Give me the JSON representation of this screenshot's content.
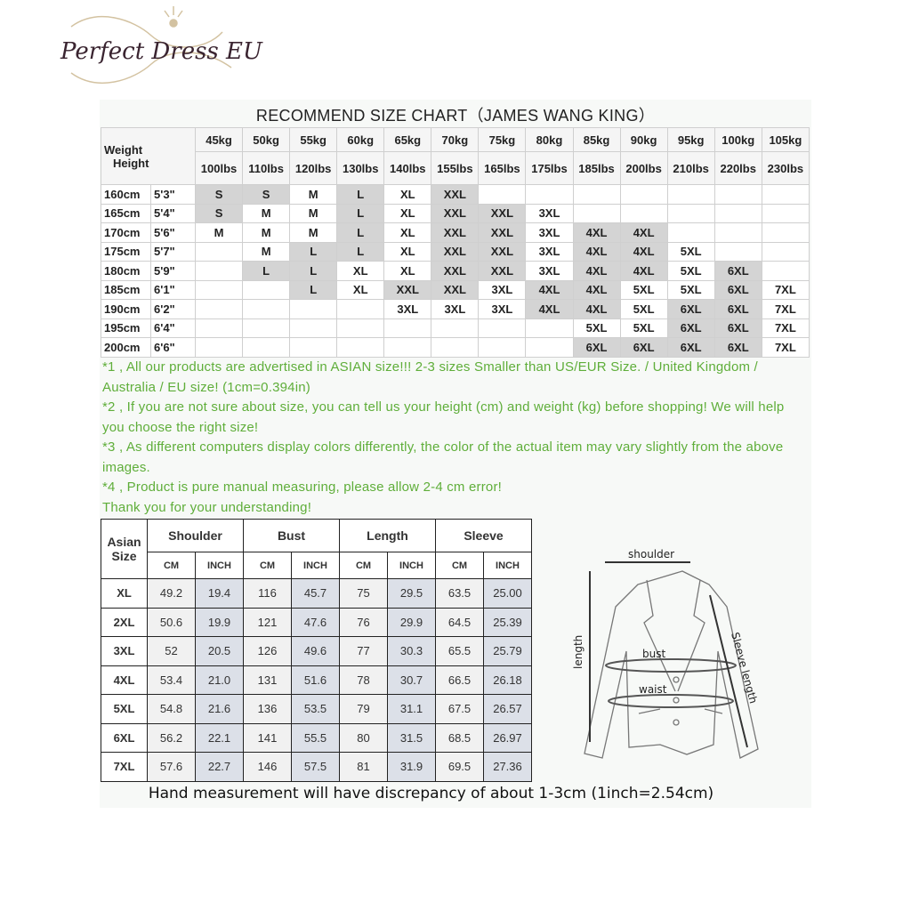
{
  "title": "RECOMMEND SIZE CHART（JAMES WANG KING）",
  "watermark": "Perfect Dress EU",
  "recommend": {
    "corner_weight": "Weight",
    "corner_height": "Height",
    "kg": [
      "45kg",
      "50kg",
      "55kg",
      "60kg",
      "65kg",
      "70kg",
      "75kg",
      "80kg",
      "85kg",
      "90kg",
      "95kg",
      "100kg",
      "105kg"
    ],
    "lbs": [
      "100lbs",
      "110lbs",
      "120lbs",
      "130lbs",
      "140lbs",
      "155lbs",
      "165lbs",
      "175lbs",
      "185lbs",
      "200lbs",
      "210lbs",
      "220lbs",
      "230lbs"
    ],
    "shaded_sizes": [
      "S",
      "L",
      "XXL",
      "4XL",
      "6XL"
    ],
    "shade_color": "#d4d4d4",
    "rows": [
      {
        "cm": "160cm",
        "ft": "5'3\"",
        "sizes": [
          "S",
          "S",
          "M",
          "L",
          "XL",
          "XXL",
          "",
          "",
          "",
          "",
          "",
          "",
          ""
        ]
      },
      {
        "cm": "165cm",
        "ft": "5'4\"",
        "sizes": [
          "S",
          "M",
          "M",
          "L",
          "XL",
          "XXL",
          "XXL",
          "3XL",
          "",
          "",
          "",
          "",
          ""
        ]
      },
      {
        "cm": "170cm",
        "ft": "5'6\"",
        "sizes": [
          "M",
          "M",
          "M",
          "L",
          "XL",
          "XXL",
          "XXL",
          "3XL",
          "4XL",
          "4XL",
          "",
          "",
          ""
        ]
      },
      {
        "cm": "175cm",
        "ft": "5'7\"",
        "sizes": [
          "",
          "M",
          "L",
          "L",
          "XL",
          "XXL",
          "XXL",
          "3XL",
          "4XL",
          "4XL",
          "5XL",
          "",
          ""
        ]
      },
      {
        "cm": "180cm",
        "ft": "5'9\"",
        "sizes": [
          "",
          "L",
          "L",
          "XL",
          "XL",
          "XXL",
          "XXL",
          "3XL",
          "4XL",
          "4XL",
          "5XL",
          "6XL",
          ""
        ]
      },
      {
        "cm": "185cm",
        "ft": "6'1\"",
        "sizes": [
          "",
          "",
          "L",
          "XL",
          "XXL",
          "XXL",
          "3XL",
          "4XL",
          "4XL",
          "5XL",
          "5XL",
          "6XL",
          "7XL"
        ]
      },
      {
        "cm": "190cm",
        "ft": "6'2\"",
        "sizes": [
          "",
          "",
          "",
          "",
          "3XL",
          "3XL",
          "3XL",
          "4XL",
          "4XL",
          "5XL",
          "6XL",
          "6XL",
          "7XL"
        ]
      },
      {
        "cm": "195cm",
        "ft": "6'4\"",
        "sizes": [
          "",
          "",
          "",
          "",
          "",
          "",
          "",
          "",
          "5XL",
          "5XL",
          "6XL",
          "6XL",
          "7XL"
        ]
      },
      {
        "cm": "200cm",
        "ft": "6'6\"",
        "sizes": [
          "",
          "",
          "",
          "",
          "",
          "",
          "",
          "",
          "6XL",
          "6XL",
          "6XL",
          "6XL",
          "7XL"
        ]
      }
    ]
  },
  "notes": [
    "*1 , All our products are advertised in ASIAN size!!! 2-3 sizes Smaller than US/EUR Size. / United Kingdom / Australia / EU size! (1cm=0.394in)",
    "*2 , If you are not sure about size, you can tell us your height (cm) and weight (kg) before shopping! We will help you choose the right size!",
    "*3 , As different computers display colors differently, the color of the actual item may vary slightly from the above images.",
    "*4 , Product is pure manual measuring, please allow 2-4 cm error!",
    "Thank you for your understanding!"
  ],
  "notes_color": "#5fae3a",
  "measurements": {
    "size_header": "Asian Size",
    "groups": [
      "Shoulder",
      "Bust",
      "Length",
      "Sleeve"
    ],
    "units": [
      "CM",
      "INCH"
    ],
    "rows": [
      {
        "size": "XL",
        "values": [
          "49.2",
          "19.4",
          "116",
          "45.7",
          "75",
          "29.5",
          "63.5",
          "25.00"
        ]
      },
      {
        "size": "2XL",
        "values": [
          "50.6",
          "19.9",
          "121",
          "47.6",
          "76",
          "29.9",
          "64.5",
          "25.39"
        ]
      },
      {
        "size": "3XL",
        "values": [
          "52",
          "20.5",
          "126",
          "49.6",
          "77",
          "30.3",
          "65.5",
          "25.79"
        ]
      },
      {
        "size": "4XL",
        "values": [
          "53.4",
          "21.0",
          "131",
          "51.6",
          "78",
          "30.7",
          "66.5",
          "26.18"
        ]
      },
      {
        "size": "5XL",
        "values": [
          "54.8",
          "21.6",
          "136",
          "53.5",
          "79",
          "31.1",
          "67.5",
          "26.57"
        ]
      },
      {
        "size": "6XL",
        "values": [
          "56.2",
          "22.1",
          "141",
          "55.5",
          "80",
          "31.5",
          "68.5",
          "26.97"
        ]
      },
      {
        "size": "7XL",
        "values": [
          "57.6",
          "22.7",
          "146",
          "57.5",
          "81",
          "31.9",
          "69.5",
          "27.36"
        ]
      }
    ]
  },
  "diagram": {
    "shoulder": "shoulder",
    "length": "length",
    "bust": "bust",
    "waist": "waist",
    "sleeve": "Sleeve length"
  },
  "footer": "Hand measurement will have discrepancy of about 1-3cm (1inch=2.54cm)"
}
